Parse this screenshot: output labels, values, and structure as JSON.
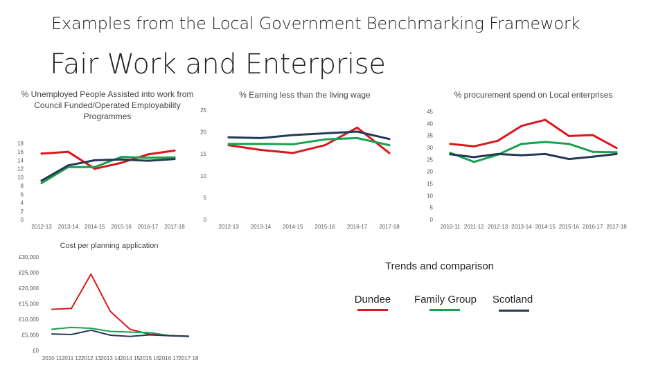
{
  "header": {
    "subtitle": "Examples from the Local Government Benchmarking Framework",
    "title": "Fair Work and Enterprise"
  },
  "colors": {
    "dundee": "#d7191c",
    "family_group": "#1aa14f",
    "scotland": "#253956",
    "axis_text": "#555555"
  },
  "legend": {
    "title": "Trends and comparison",
    "items": [
      {
        "label": "Dundee",
        "color": "#d7191c"
      },
      {
        "label": "Family Group",
        "color": "#1aa14f"
      },
      {
        "label": "Scotland",
        "color": "#253956"
      }
    ]
  },
  "chart_data": [
    {
      "type": "line",
      "title": "% Unemployed People Assisted into work from Council Funded/Operated Employability Programmes",
      "categories": [
        "2012-13",
        "2013-14",
        "2014-15",
        "2015-16",
        "2016-17",
        "2017-18"
      ],
      "ylim": [
        0,
        18
      ],
      "yticks": [
        "0",
        "2",
        "4",
        "6",
        "8",
        "10",
        "12",
        "14",
        "16",
        "18"
      ],
      "series": [
        {
          "name": "Dundee",
          "values": [
            15.6,
            16.0,
            12.0,
            13.4,
            15.4,
            16.3
          ]
        },
        {
          "name": "Family Group",
          "values": [
            8.6,
            12.4,
            12.4,
            14.8,
            14.6,
            14.7
          ]
        },
        {
          "name": "Scotland",
          "values": [
            9.2,
            12.8,
            14.0,
            14.2,
            13.9,
            14.3
          ]
        }
      ]
    },
    {
      "type": "line",
      "title": "% Earning less than the living wage",
      "categories": [
        "2012-13",
        "2013-14",
        "2014-15",
        "2015-16",
        "2016-17",
        "2017-18"
      ],
      "ylim": [
        0,
        25
      ],
      "yticks": [
        "0",
        "5",
        "10",
        "15",
        "20",
        "25"
      ],
      "series": [
        {
          "name": "Dundee",
          "values": [
            17.0,
            15.9,
            15.2,
            17.0,
            21.0,
            15.2
          ]
        },
        {
          "name": "Family Group",
          "values": [
            17.3,
            17.3,
            17.2,
            18.3,
            18.6,
            17.0
          ]
        },
        {
          "name": "Scotland",
          "values": [
            18.8,
            18.6,
            19.3,
            19.7,
            20.1,
            18.4
          ]
        }
      ]
    },
    {
      "type": "line",
      "title": "% procurement spend on Local enterprises",
      "categories": [
        "2010-11",
        "2011-12",
        "2012-13",
        "2013-14",
        "2014-15",
        "2015-16",
        "2016-17",
        "2017-18"
      ],
      "ylim": [
        0,
        45
      ],
      "yticks": [
        "0",
        "5",
        "10",
        "15",
        "20",
        "25",
        "30",
        "35",
        "40",
        "45"
      ],
      "series": [
        {
          "name": "Dundee",
          "values": [
            31.5,
            30.5,
            32.8,
            39.0,
            41.5,
            34.8,
            35.2,
            29.8
          ]
        },
        {
          "name": "Family Group",
          "values": [
            27.8,
            24.0,
            27.0,
            31.5,
            32.3,
            31.5,
            28.2,
            28.0
          ]
        },
        {
          "name": "Scotland",
          "values": [
            27.2,
            26.0,
            27.3,
            26.8,
            27.3,
            25.2,
            26.2,
            27.3
          ]
        }
      ]
    },
    {
      "type": "line",
      "title": "Cost per planning application",
      "categories": [
        "2010 11",
        "2011 12",
        "2012 13",
        "2013 14",
        "2014 15",
        "2015 16",
        "2016 17",
        "2017 18"
      ],
      "ylim": [
        0,
        30000
      ],
      "yticks": [
        "£0",
        "£5,000",
        "£10,000",
        "£15,000",
        "£20,000",
        "£25,000",
        "£30,000"
      ],
      "series": [
        {
          "name": "Dundee",
          "values": [
            13200,
            13500,
            24500,
            12500,
            6800,
            5200,
            4800,
            4600
          ]
        },
        {
          "name": "Family Group",
          "values": [
            6800,
            7400,
            7100,
            6100,
            5900,
            5700,
            4800,
            4500
          ]
        },
        {
          "name": "Scotland",
          "values": [
            5300,
            5100,
            6500,
            4900,
            4500,
            5000,
            4700,
            4500
          ]
        }
      ]
    }
  ]
}
